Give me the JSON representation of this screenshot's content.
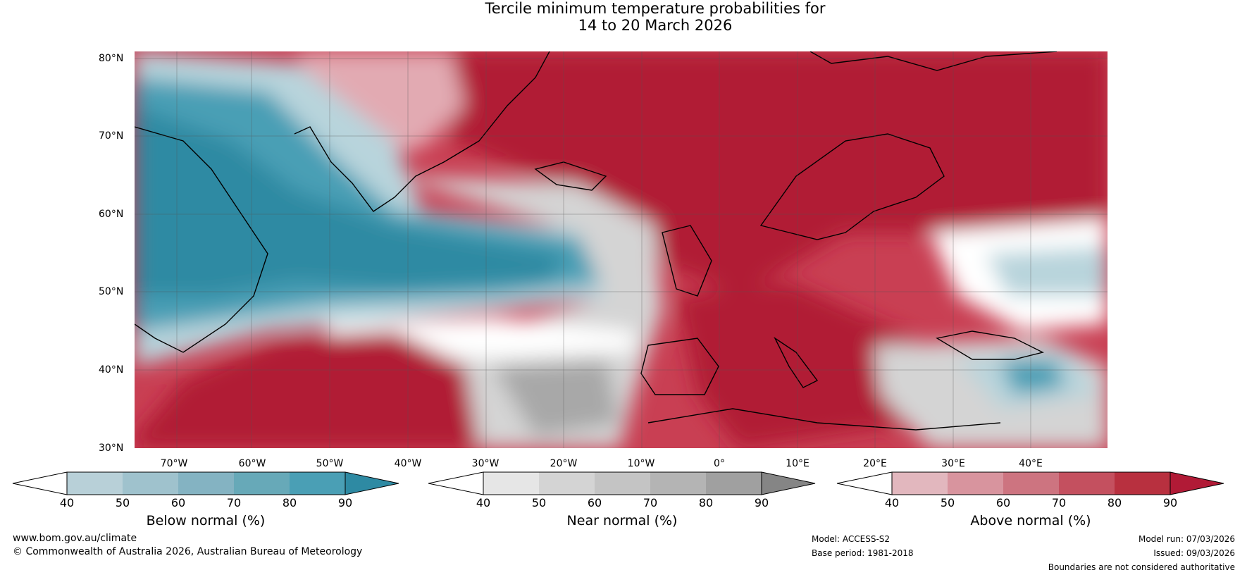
{
  "title": {
    "line1": "Tercile minimum temperature probabilities for",
    "line2": "14 to 20 March 2026"
  },
  "map": {
    "lat_labels": [
      "80°N",
      "70°N",
      "60°N",
      "50°N",
      "40°N",
      "30°N"
    ],
    "lon_labels": [
      "70°W",
      "60°W",
      "50°W",
      "40°W",
      "30°W",
      "20°W",
      "10°W",
      "0°",
      "10°E",
      "20°E",
      "30°E",
      "40°E"
    ],
    "colors": {
      "strong_above": "#b11a36",
      "above": "#c93f53",
      "mild_above": "#e2aab2",
      "near": "#d4d4d4",
      "near_dark": "#a8a8a8",
      "below": "#4a9fb5",
      "strong_below": "#2e8aa3",
      "mild_below": "#b8d4dc"
    }
  },
  "colorbars": [
    {
      "label": "Below normal (%)",
      "ticks": [
        "40",
        "50",
        "60",
        "70",
        "80",
        "90"
      ],
      "colors": [
        "#b8d0d8",
        "#9fc2cd",
        "#84b3c2",
        "#67a9b8",
        "#4a9fb5",
        "#2e8aa3"
      ]
    },
    {
      "label": "Near normal (%)",
      "ticks": [
        "40",
        "50",
        "60",
        "70",
        "80",
        "90"
      ],
      "colors": [
        "#e6e6e6",
        "#d4d4d4",
        "#c4c4c4",
        "#b4b4b4",
        "#a0a0a0",
        "#858585"
      ]
    },
    {
      "label": "Above normal (%)",
      "ticks": [
        "40",
        "50",
        "60",
        "70",
        "80",
        "90"
      ],
      "colors": [
        "#e2b7be",
        "#d8949e",
        "#cd7480",
        "#c4505f",
        "#b8303f",
        "#b11a36"
      ]
    }
  ],
  "footer": {
    "website": "www.bom.gov.au/climate",
    "copyright": "© Commonwealth of Australia 2026, Australian Bureau of Meteorology",
    "model": "Model: ACCESS-S2",
    "base_period": "Base period: 1981-2018",
    "model_run": "Model run: 07/03/2026",
    "issued": "Issued: 09/03/2026",
    "disclaimer": "Boundaries are not considered authoritative"
  }
}
